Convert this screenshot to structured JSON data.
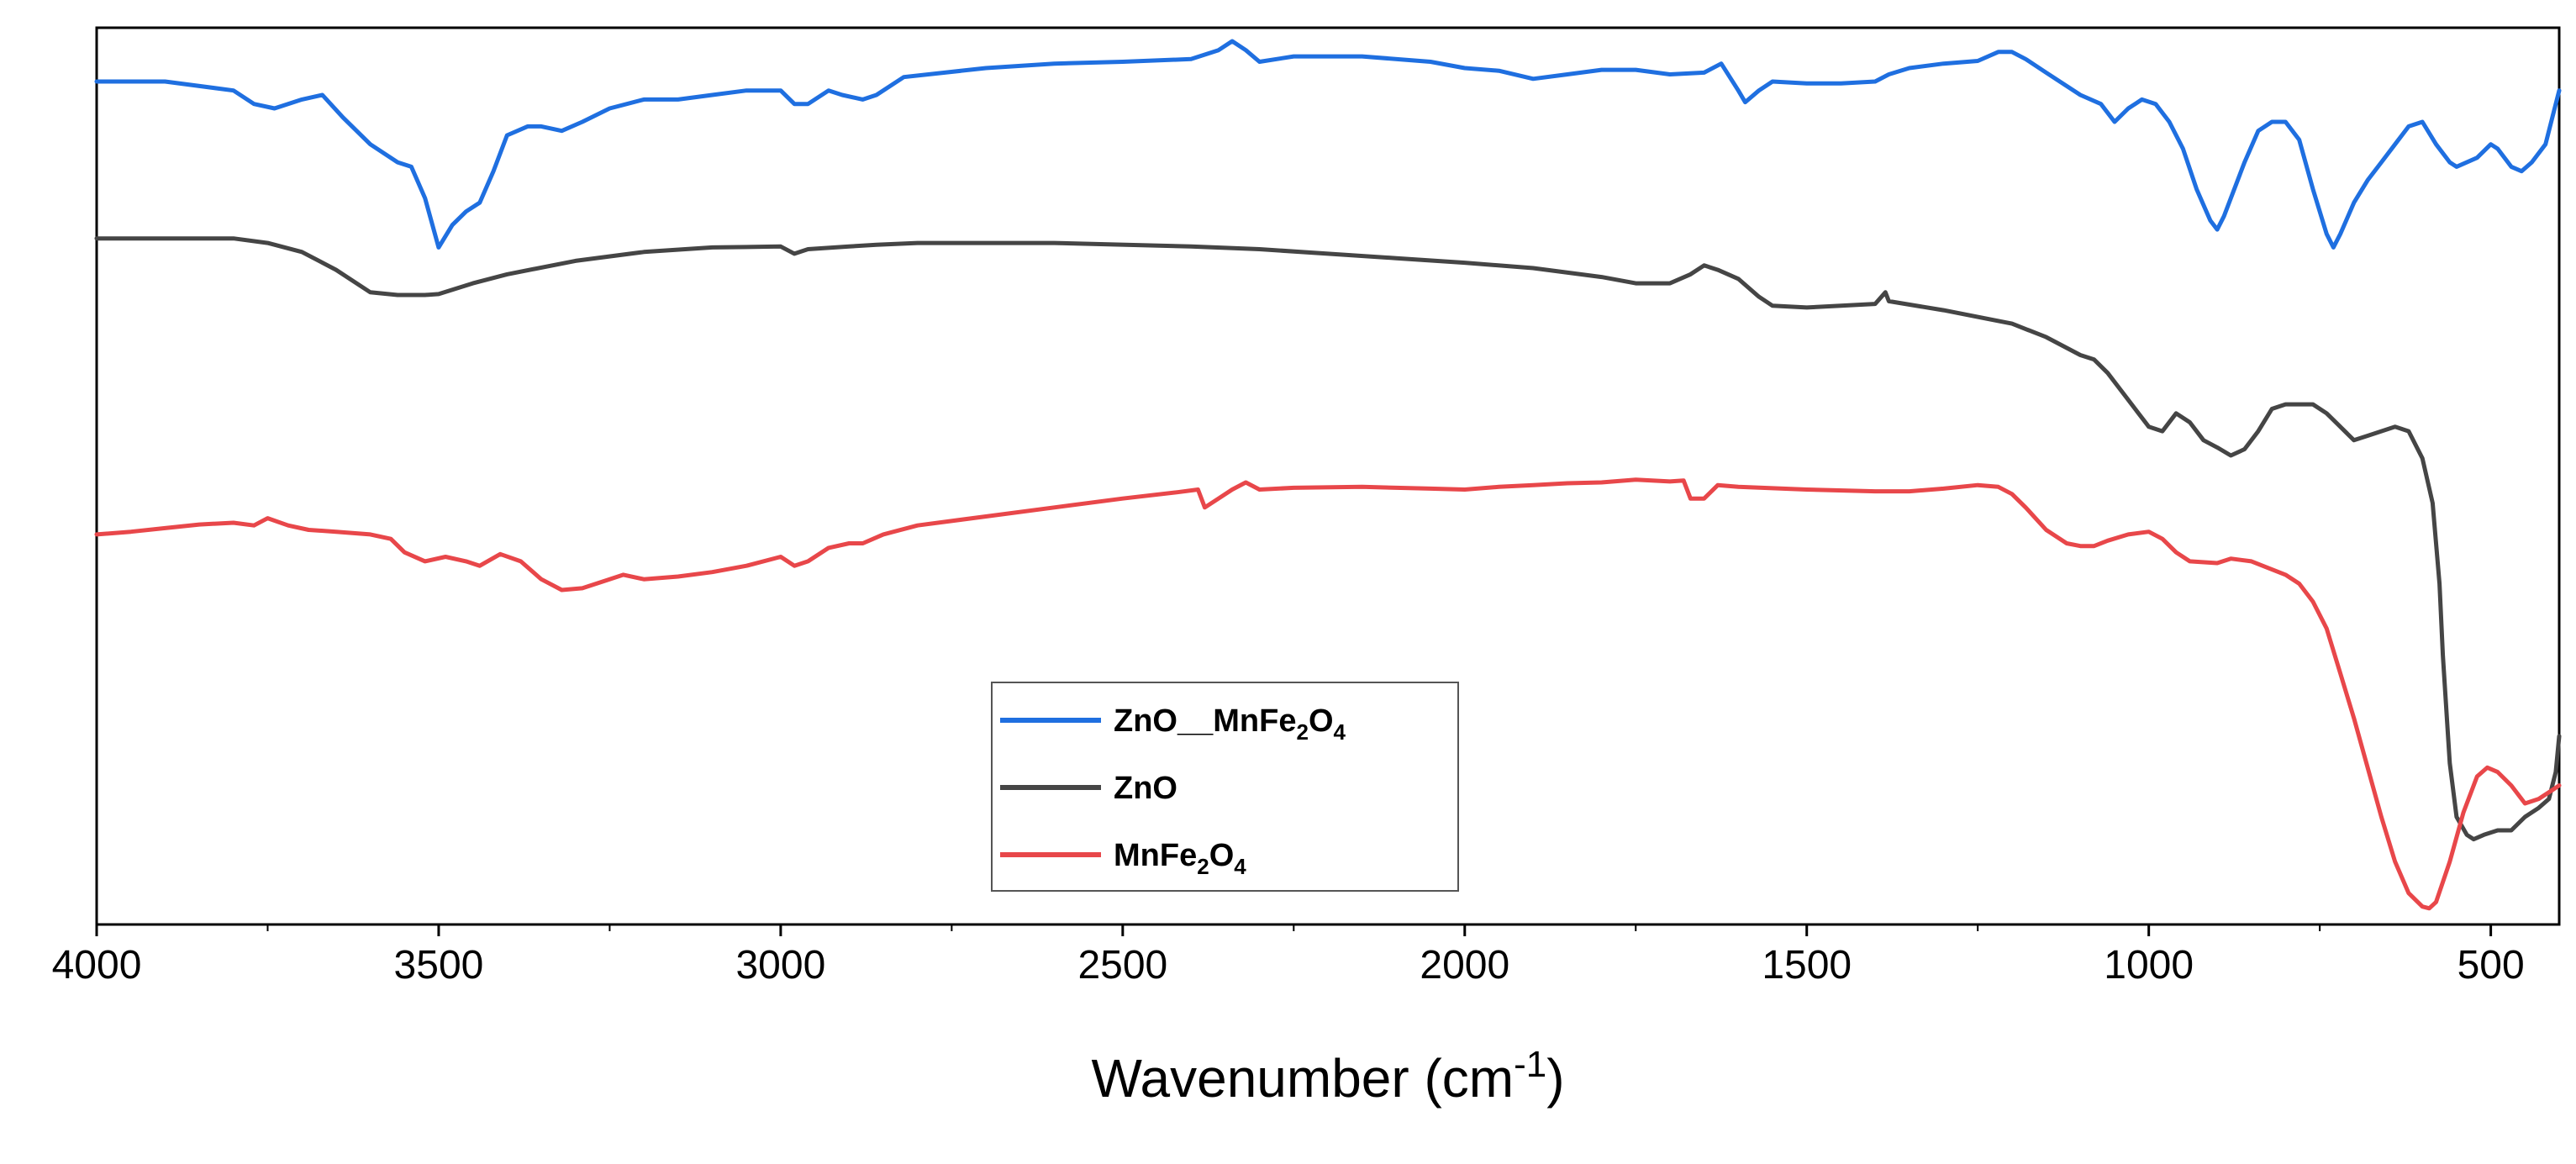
{
  "chart_data": {
    "type": "line",
    "title": "",
    "xlabel": "Wavenumber (cm",
    "xlabel_sup": "-1",
    "xlabel_close": ")",
    "ylabel": "",
    "xlim": [
      4000,
      400
    ],
    "x_reversed": true,
    "ylim": [
      0,
      100
    ],
    "y_ticks_shown": false,
    "x_ticks": [
      4000,
      3500,
      3000,
      2500,
      2000,
      1500,
      1000,
      500
    ],
    "legend_position": "bottom-center",
    "series": [
      {
        "name": "ZnO__MnFe2O4",
        "label_parts": [
          "ZnO__MnFe",
          "2",
          "O",
          "4"
        ],
        "color": "#1f6fe0",
        "points": [
          [
            4000,
            94
          ],
          [
            3900,
            94
          ],
          [
            3800,
            93
          ],
          [
            3770,
            91.5
          ],
          [
            3740,
            91
          ],
          [
            3700,
            92
          ],
          [
            3670,
            92.5
          ],
          [
            3640,
            90
          ],
          [
            3600,
            87
          ],
          [
            3560,
            85
          ],
          [
            3540,
            84.5
          ],
          [
            3520,
            81
          ],
          [
            3500,
            75.5
          ],
          [
            3480,
            78
          ],
          [
            3460,
            79.5
          ],
          [
            3440,
            80.5
          ],
          [
            3420,
            84
          ],
          [
            3400,
            88
          ],
          [
            3370,
            89
          ],
          [
            3350,
            89
          ],
          [
            3320,
            88.5
          ],
          [
            3290,
            89.5
          ],
          [
            3250,
            91
          ],
          [
            3200,
            92
          ],
          [
            3150,
            92
          ],
          [
            3100,
            92.5
          ],
          [
            3050,
            93
          ],
          [
            3000,
            93
          ],
          [
            2980,
            91.5
          ],
          [
            2960,
            91.5
          ],
          [
            2930,
            93
          ],
          [
            2910,
            92.5
          ],
          [
            2880,
            92
          ],
          [
            2860,
            92.5
          ],
          [
            2820,
            94.5
          ],
          [
            2700,
            95.5
          ],
          [
            2600,
            96
          ],
          [
            2500,
            96.2
          ],
          [
            2400,
            96.5
          ],
          [
            2360,
            97.5
          ],
          [
            2340,
            98.5
          ],
          [
            2320,
            97.5
          ],
          [
            2300,
            96.2
          ],
          [
            2250,
            96.8
          ],
          [
            2150,
            96.8
          ],
          [
            2050,
            96.2
          ],
          [
            2000,
            95.5
          ],
          [
            1950,
            95.2
          ],
          [
            1900,
            94.3
          ],
          [
            1850,
            94.8
          ],
          [
            1800,
            95.3
          ],
          [
            1750,
            95.3
          ],
          [
            1700,
            94.8
          ],
          [
            1650,
            95
          ],
          [
            1625,
            96
          ],
          [
            1600,
            93
          ],
          [
            1590,
            91.7
          ],
          [
            1570,
            93
          ],
          [
            1550,
            94
          ],
          [
            1500,
            93.8
          ],
          [
            1450,
            93.8
          ],
          [
            1400,
            94
          ],
          [
            1380,
            94.8
          ],
          [
            1350,
            95.5
          ],
          [
            1300,
            96
          ],
          [
            1250,
            96.3
          ],
          [
            1220,
            97.3
          ],
          [
            1200,
            97.3
          ],
          [
            1180,
            96.5
          ],
          [
            1150,
            95
          ],
          [
            1100,
            92.5
          ],
          [
            1070,
            91.5
          ],
          [
            1050,
            89.5
          ],
          [
            1030,
            91
          ],
          [
            1010,
            92
          ],
          [
            990,
            91.5
          ],
          [
            970,
            89.5
          ],
          [
            950,
            86.5
          ],
          [
            930,
            82
          ],
          [
            910,
            78.5
          ],
          [
            900,
            77.5
          ],
          [
            890,
            79
          ],
          [
            860,
            85
          ],
          [
            840,
            88.5
          ],
          [
            820,
            89.5
          ],
          [
            800,
            89.5
          ],
          [
            780,
            87.5
          ],
          [
            760,
            82
          ],
          [
            740,
            77
          ],
          [
            730,
            75.5
          ],
          [
            720,
            77
          ],
          [
            700,
            80.5
          ],
          [
            680,
            83
          ],
          [
            660,
            85
          ],
          [
            640,
            87
          ],
          [
            620,
            89
          ],
          [
            600,
            89.5
          ],
          [
            580,
            87
          ],
          [
            560,
            85
          ],
          [
            550,
            84.5
          ],
          [
            520,
            85.5
          ],
          [
            500,
            87
          ],
          [
            490,
            86.5
          ],
          [
            470,
            84.5
          ],
          [
            455,
            84
          ],
          [
            440,
            85
          ],
          [
            420,
            87
          ],
          [
            400,
            93
          ]
        ]
      },
      {
        "name": "ZnO",
        "label_parts": [
          "ZnO"
        ],
        "color": "#454545",
        "points": [
          [
            4000,
            76.5
          ],
          [
            3900,
            76.5
          ],
          [
            3800,
            76.5
          ],
          [
            3750,
            76
          ],
          [
            3700,
            75
          ],
          [
            3650,
            73
          ],
          [
            3600,
            70.5
          ],
          [
            3560,
            70.2
          ],
          [
            3520,
            70.2
          ],
          [
            3500,
            70.3
          ],
          [
            3450,
            71.5
          ],
          [
            3400,
            72.5
          ],
          [
            3300,
            74
          ],
          [
            3200,
            75
          ],
          [
            3100,
            75.5
          ],
          [
            3000,
            75.6
          ],
          [
            2980,
            74.8
          ],
          [
            2960,
            75.3
          ],
          [
            2900,
            75.6
          ],
          [
            2860,
            75.8
          ],
          [
            2800,
            76
          ],
          [
            2600,
            76
          ],
          [
            2400,
            75.6
          ],
          [
            2300,
            75.3
          ],
          [
            2200,
            74.8
          ],
          [
            2100,
            74.3
          ],
          [
            2000,
            73.8
          ],
          [
            1900,
            73.2
          ],
          [
            1800,
            72.2
          ],
          [
            1750,
            71.5
          ],
          [
            1700,
            71.5
          ],
          [
            1670,
            72.5
          ],
          [
            1650,
            73.5
          ],
          [
            1630,
            73
          ],
          [
            1600,
            72
          ],
          [
            1570,
            70
          ],
          [
            1550,
            69
          ],
          [
            1500,
            68.8
          ],
          [
            1450,
            69
          ],
          [
            1400,
            69.2
          ],
          [
            1385,
            70.5
          ],
          [
            1380,
            69.5
          ],
          [
            1300,
            68.5
          ],
          [
            1200,
            67
          ],
          [
            1150,
            65.5
          ],
          [
            1100,
            63.5
          ],
          [
            1080,
            63
          ],
          [
            1060,
            61.5
          ],
          [
            1040,
            59.5
          ],
          [
            1020,
            57.5
          ],
          [
            1000,
            55.5
          ],
          [
            980,
            55
          ],
          [
            960,
            57
          ],
          [
            940,
            56
          ],
          [
            920,
            54
          ],
          [
            900,
            53.2
          ],
          [
            880,
            52.3
          ],
          [
            860,
            53
          ],
          [
            840,
            55
          ],
          [
            820,
            57.5
          ],
          [
            800,
            58
          ],
          [
            760,
            58
          ],
          [
            740,
            57
          ],
          [
            720,
            55.5
          ],
          [
            700,
            54
          ],
          [
            680,
            54.5
          ],
          [
            660,
            55
          ],
          [
            640,
            55.5
          ],
          [
            620,
            55
          ],
          [
            600,
            52
          ],
          [
            585,
            47
          ],
          [
            575,
            38
          ],
          [
            570,
            30
          ],
          [
            560,
            18
          ],
          [
            550,
            12
          ],
          [
            535,
            10
          ],
          [
            525,
            9.5
          ],
          [
            510,
            10
          ],
          [
            490,
            10.5
          ],
          [
            470,
            10.5
          ],
          [
            450,
            12
          ],
          [
            430,
            13
          ],
          [
            415,
            14
          ],
          [
            405,
            17
          ],
          [
            400,
            21
          ]
        ]
      },
      {
        "name": "MnFe2O4",
        "label_parts": [
          "MnFe",
          "2",
          "O",
          "4"
        ],
        "color": "#e8474a",
        "points": [
          [
            4000,
            43.5
          ],
          [
            3950,
            43.8
          ],
          [
            3900,
            44.2
          ],
          [
            3850,
            44.6
          ],
          [
            3800,
            44.8
          ],
          [
            3770,
            44.5
          ],
          [
            3750,
            45.3
          ],
          [
            3720,
            44.5
          ],
          [
            3690,
            44
          ],
          [
            3650,
            43.8
          ],
          [
            3600,
            43.5
          ],
          [
            3570,
            43
          ],
          [
            3550,
            41.5
          ],
          [
            3520,
            40.5
          ],
          [
            3490,
            41
          ],
          [
            3460,
            40.5
          ],
          [
            3440,
            40
          ],
          [
            3410,
            41.3
          ],
          [
            3380,
            40.5
          ],
          [
            3350,
            38.5
          ],
          [
            3320,
            37.3
          ],
          [
            3290,
            37.5
          ],
          [
            3250,
            38.5
          ],
          [
            3230,
            39
          ],
          [
            3200,
            38.5
          ],
          [
            3150,
            38.8
          ],
          [
            3100,
            39.3
          ],
          [
            3050,
            40
          ],
          [
            3000,
            41
          ],
          [
            2980,
            40
          ],
          [
            2960,
            40.5
          ],
          [
            2930,
            42
          ],
          [
            2900,
            42.5
          ],
          [
            2880,
            42.5
          ],
          [
            2850,
            43.5
          ],
          [
            2800,
            44.5
          ],
          [
            2700,
            45.5
          ],
          [
            2600,
            46.5
          ],
          [
            2500,
            47.5
          ],
          [
            2420,
            48.2
          ],
          [
            2390,
            48.5
          ],
          [
            2380,
            46.5
          ],
          [
            2360,
            47.5
          ],
          [
            2340,
            48.5
          ],
          [
            2320,
            49.3
          ],
          [
            2300,
            48.5
          ],
          [
            2250,
            48.7
          ],
          [
            2150,
            48.8
          ],
          [
            2050,
            48.6
          ],
          [
            2000,
            48.5
          ],
          [
            1950,
            48.8
          ],
          [
            1900,
            49
          ],
          [
            1850,
            49.2
          ],
          [
            1800,
            49.3
          ],
          [
            1750,
            49.6
          ],
          [
            1700,
            49.4
          ],
          [
            1680,
            49.5
          ],
          [
            1670,
            47.5
          ],
          [
            1650,
            47.5
          ],
          [
            1630,
            49
          ],
          [
            1600,
            48.8
          ],
          [
            1500,
            48.5
          ],
          [
            1400,
            48.3
          ],
          [
            1350,
            48.3
          ],
          [
            1300,
            48.6
          ],
          [
            1250,
            49
          ],
          [
            1220,
            48.8
          ],
          [
            1200,
            48
          ],
          [
            1180,
            46.5
          ],
          [
            1150,
            44
          ],
          [
            1120,
            42.5
          ],
          [
            1100,
            42.2
          ],
          [
            1080,
            42.2
          ],
          [
            1060,
            42.8
          ],
          [
            1030,
            43.5
          ],
          [
            1000,
            43.8
          ],
          [
            980,
            43
          ],
          [
            960,
            41.5
          ],
          [
            940,
            40.5
          ],
          [
            900,
            40.3
          ],
          [
            880,
            40.8
          ],
          [
            850,
            40.5
          ],
          [
            800,
            39
          ],
          [
            780,
            38
          ],
          [
            760,
            36
          ],
          [
            740,
            33
          ],
          [
            720,
            28
          ],
          [
            700,
            23
          ],
          [
            680,
            17.5
          ],
          [
            660,
            12
          ],
          [
            640,
            7
          ],
          [
            620,
            3.5
          ],
          [
            600,
            2
          ],
          [
            590,
            1.8
          ],
          [
            580,
            2.5
          ],
          [
            560,
            7
          ],
          [
            540,
            12.5
          ],
          [
            520,
            16.5
          ],
          [
            505,
            17.5
          ],
          [
            490,
            17
          ],
          [
            470,
            15.5
          ],
          [
            450,
            13.5
          ],
          [
            430,
            14
          ],
          [
            410,
            15
          ],
          [
            400,
            15.5
          ]
        ]
      }
    ]
  }
}
